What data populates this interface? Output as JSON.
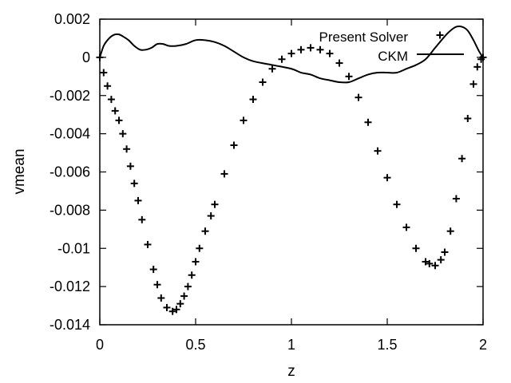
{
  "chart_data": {
    "type": "line",
    "xlabel": "z",
    "ylabel": "vmean",
    "xlim": [
      0,
      2
    ],
    "ylim": [
      -0.014,
      0.002
    ],
    "x_ticks": [
      0,
      0.5,
      1,
      1.5,
      2
    ],
    "x_tick_labels": [
      "0",
      "0.5",
      "1",
      "1.5",
      "2"
    ],
    "y_ticks": [
      0.002,
      0,
      -0.002,
      -0.004,
      -0.006,
      -0.008,
      -0.01,
      -0.012,
      -0.014
    ],
    "y_tick_labels": [
      "0.002",
      "0",
      "-0.002",
      "-0.004",
      "-0.006",
      "-0.008",
      "-0.01",
      "-0.012",
      "-0.014"
    ],
    "legend_position": "top-right",
    "grid": false,
    "series": [
      {
        "name": "Present Solver",
        "style": "markers",
        "marker": "+",
        "color": "#000000",
        "x": [
          0,
          0.02,
          0.04,
          0.06,
          0.08,
          0.1,
          0.12,
          0.14,
          0.16,
          0.18,
          0.2,
          0.22,
          0.25,
          0.28,
          0.3,
          0.32,
          0.35,
          0.38,
          0.4,
          0.42,
          0.44,
          0.46,
          0.48,
          0.5,
          0.52,
          0.55,
          0.58,
          0.6,
          0.65,
          0.7,
          0.75,
          0.8,
          0.85,
          0.9,
          0.95,
          1.0,
          1.05,
          1.1,
          1.15,
          1.2,
          1.25,
          1.3,
          1.35,
          1.4,
          1.45,
          1.5,
          1.55,
          1.6,
          1.65,
          1.7,
          1.72,
          1.75,
          1.78,
          1.8,
          1.83,
          1.86,
          1.89,
          1.92,
          1.95,
          1.97,
          1.99,
          2.0
        ],
        "y": [
          0,
          -0.0008,
          -0.0015,
          -0.0022,
          -0.0028,
          -0.0033,
          -0.004,
          -0.0048,
          -0.0057,
          -0.0066,
          -0.0075,
          -0.0085,
          -0.0098,
          -0.0111,
          -0.0119,
          -0.0126,
          -0.0131,
          -0.0133,
          -0.0132,
          -0.0129,
          -0.0125,
          -0.012,
          -0.0114,
          -0.0107,
          -0.01,
          -0.0091,
          -0.0083,
          -0.0077,
          -0.0061,
          -0.0046,
          -0.0033,
          -0.0022,
          -0.0013,
          -0.0006,
          -0.0001,
          0.0002,
          0.0004,
          0.0005,
          0.0004,
          0.0002,
          -0.0003,
          -0.001,
          -0.0021,
          -0.0034,
          -0.0049,
          -0.0063,
          -0.0077,
          -0.0089,
          -0.01,
          -0.0107,
          -0.0108,
          -0.0109,
          -0.0106,
          -0.0102,
          -0.0091,
          -0.0074,
          -0.0053,
          -0.0032,
          -0.0014,
          -0.0005,
          -0.0001,
          0
        ]
      },
      {
        "name": "CKM",
        "style": "line",
        "color": "#000000",
        "x": [
          0,
          0.02,
          0.04,
          0.06,
          0.08,
          0.1,
          0.12,
          0.15,
          0.18,
          0.21,
          0.24,
          0.27,
          0.3,
          0.33,
          0.36,
          0.4,
          0.45,
          0.5,
          0.55,
          0.6,
          0.65,
          0.7,
          0.75,
          0.8,
          0.9,
          1.0,
          1.05,
          1.1,
          1.15,
          1.2,
          1.25,
          1.3,
          1.35,
          1.4,
          1.45,
          1.5,
          1.55,
          1.6,
          1.65,
          1.7,
          1.75,
          1.8,
          1.83,
          1.86,
          1.89,
          1.92,
          1.95,
          1.98,
          2.0
        ],
        "y": [
          0,
          0.0006,
          0.0009,
          0.0011,
          0.0012,
          0.0012,
          0.0011,
          0.0009,
          0.0006,
          0.0004,
          0.0004,
          0.0005,
          0.0007,
          0.0007,
          0.0006,
          0.0006,
          0.0007,
          0.0009,
          0.0009,
          0.0008,
          0.0006,
          0.0003,
          0,
          -0.0002,
          -0.0004,
          -0.0006,
          -0.0008,
          -0.0009,
          -0.0011,
          -0.0012,
          -0.0013,
          -0.0013,
          -0.0011,
          -0.0009,
          -0.0008,
          -0.0008,
          -0.0008,
          -0.0006,
          -0.0004,
          -0.0001,
          0.0005,
          0.0011,
          0.0014,
          0.0016,
          0.0016,
          0.0014,
          0.0009,
          0.0003,
          0
        ]
      }
    ]
  }
}
